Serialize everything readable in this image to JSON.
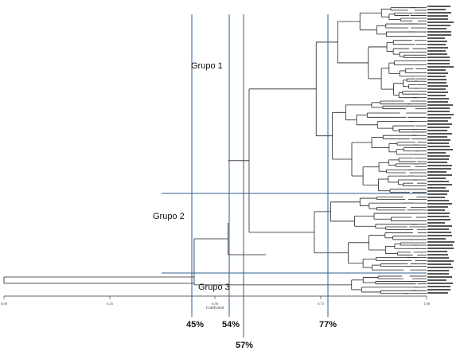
{
  "groups": {
    "grupo1": "Grupo 1",
    "grupo2": "Grupo 2",
    "grupo3": "Grupo 3"
  },
  "cut_lines": {
    "c45": "45%",
    "c54": "54%",
    "c57": "57%",
    "c77": "77%"
  },
  "axis": {
    "title": "Coefficient",
    "ticks": [
      "0.00",
      "0.25",
      "0.50",
      "0.75",
      "1.00"
    ]
  },
  "colors": {
    "cut_line": "#2f5f8f",
    "dendrogram": "#222222"
  }
}
